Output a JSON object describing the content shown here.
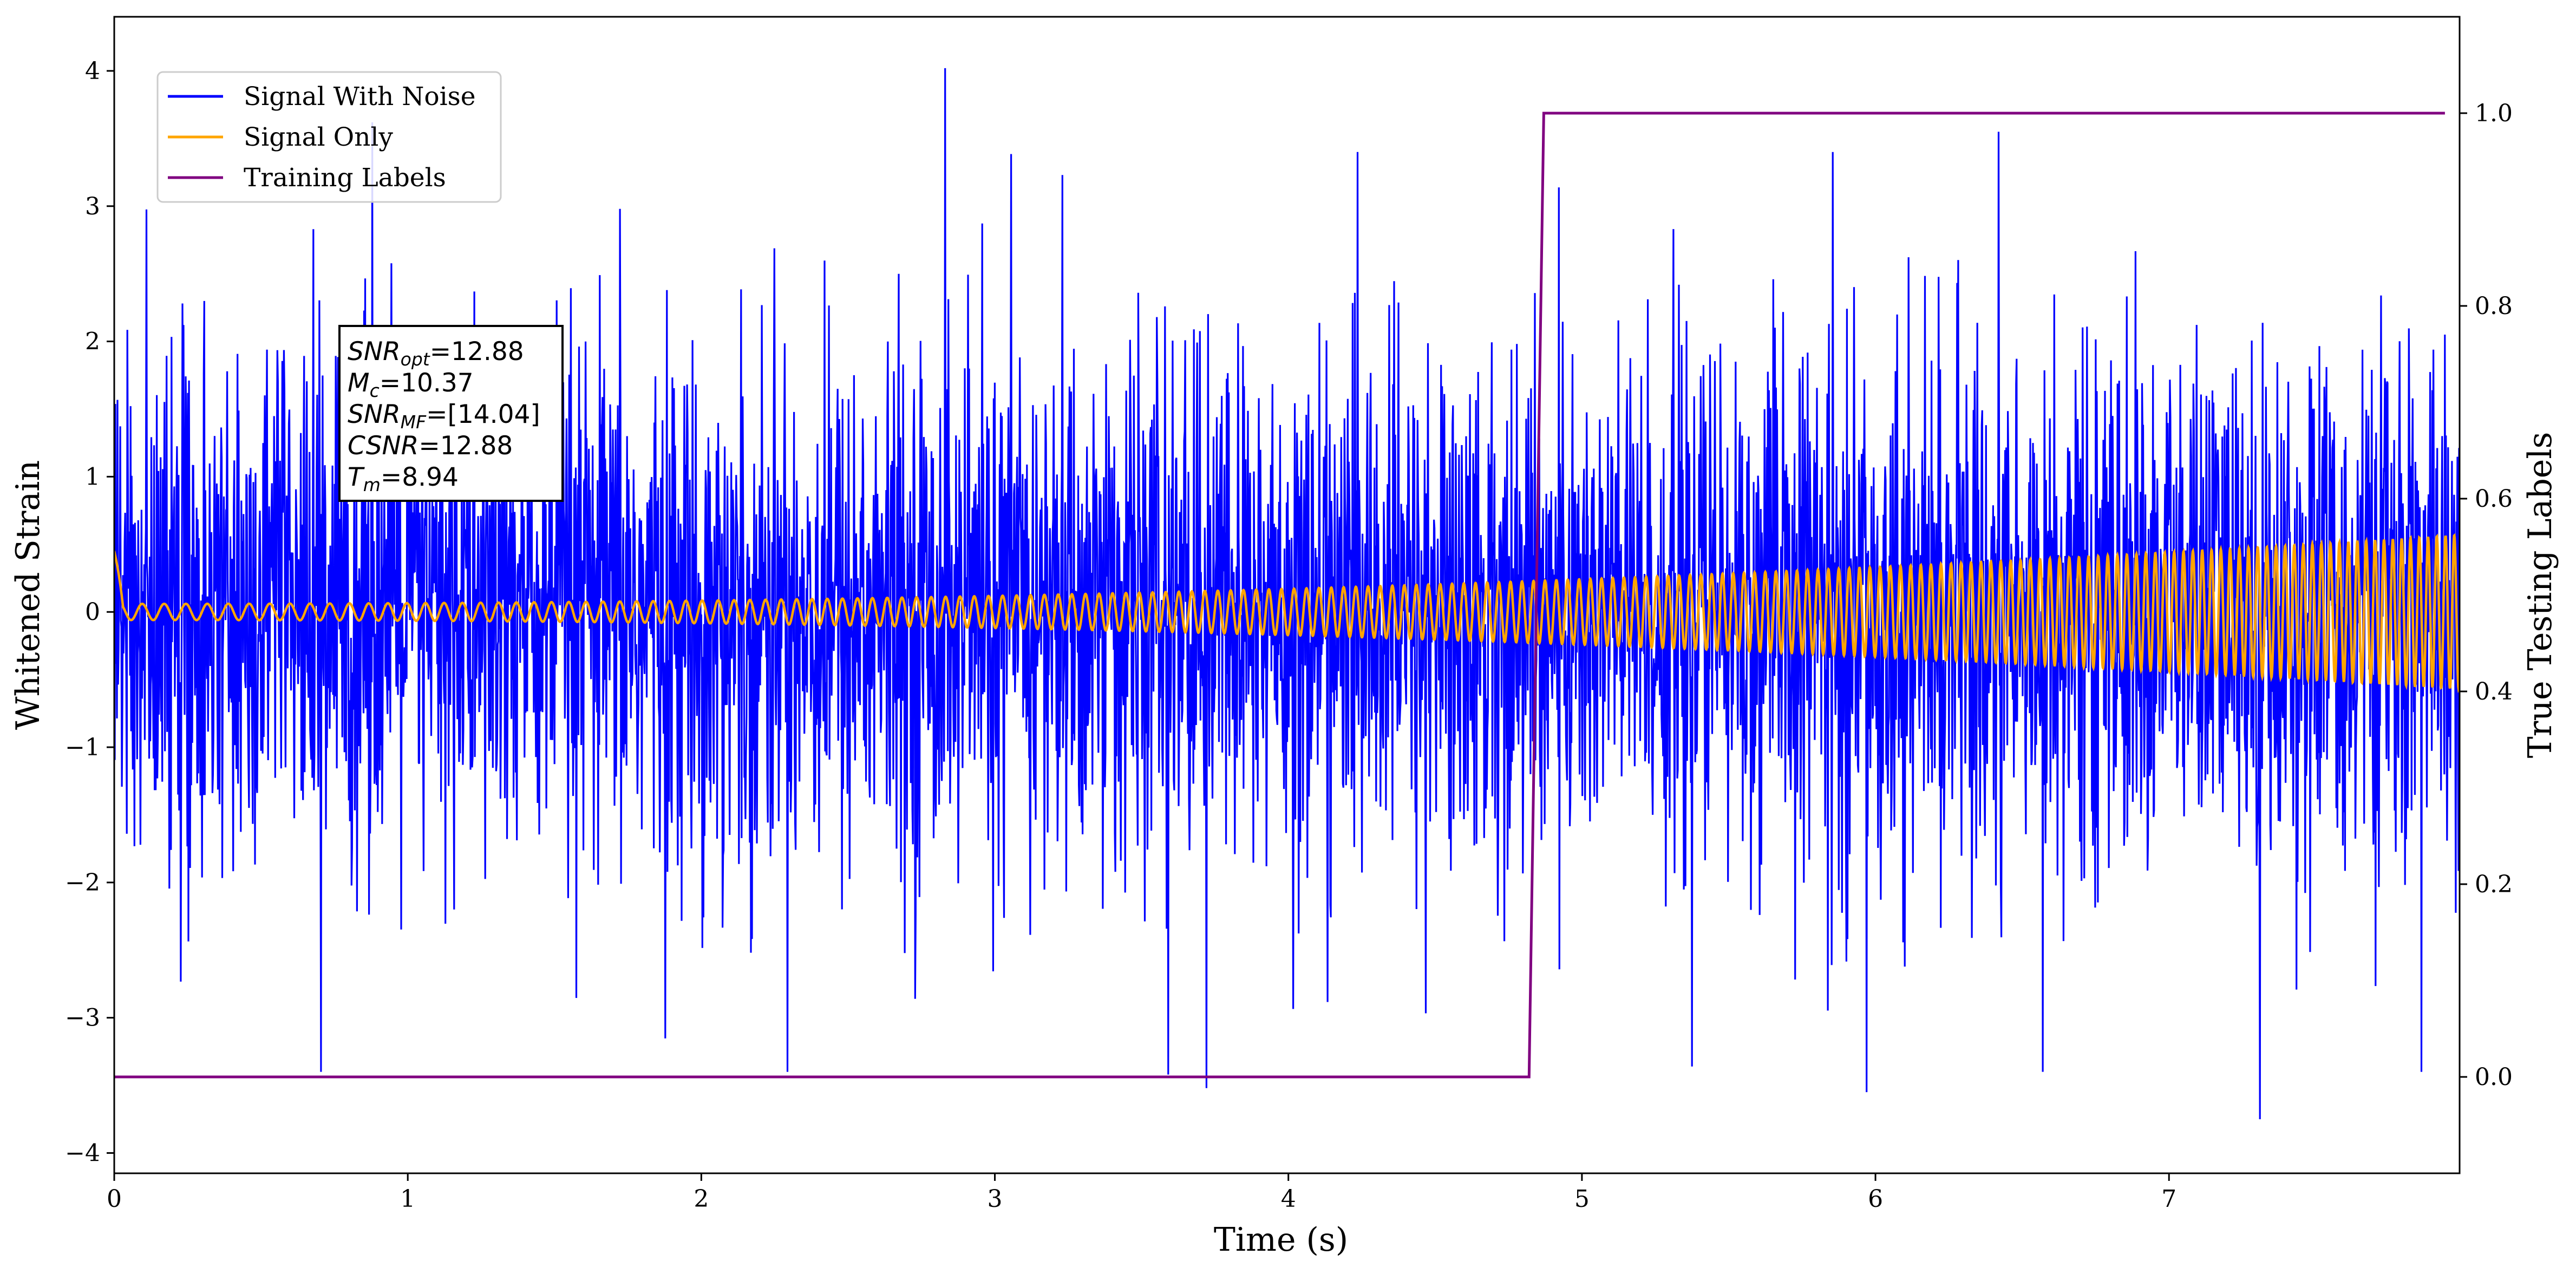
{
  "chart_data": {
    "type": "line",
    "xlabel": "Time (s)",
    "ylabel": "Whitened Strain",
    "ylabel_right": "True Testing Labels",
    "xlim": [
      0,
      7.99
    ],
    "ylim": [
      -4.15,
      4.4
    ],
    "ylim_right": [
      -0.1,
      1.1
    ],
    "x_ticks": [
      "0",
      "1",
      "2",
      "3",
      "4",
      "5",
      "6",
      "7"
    ],
    "y_ticks": [
      "4",
      "3",
      "2",
      "1",
      "0",
      "−1",
      "−2",
      "−3",
      "−4"
    ],
    "y_right_ticks": [
      "0.0",
      "0.2",
      "0.4",
      "0.6",
      "0.8",
      "1.0"
    ],
    "legend_position": "upper-left",
    "series": [
      {
        "name": "Signal With Noise",
        "color": "#0000ff",
        "axis": "left",
        "description_of_values": "random whitened strain noise, roughly within -2.5..2.5 with spikes",
        "peaks": [
          {
            "x": 2.83,
            "y": 4.02
          },
          {
            "x": 0.88,
            "y": 3.62
          },
          {
            "x": 6.42,
            "y": 3.55
          },
          {
            "x": 3.72,
            "y": -3.52
          },
          {
            "x": 5.97,
            "y": -3.55
          },
          {
            "x": 7.31,
            "y": -3.75
          },
          {
            "x": 3.59,
            "y": -3.42
          }
        ]
      },
      {
        "name": "Signal Only",
        "color": "#ffa500",
        "axis": "left",
        "description_of_values": "chirp with amplitude growing from ~0.06 at t=0 to ~0.57 at t=7.99"
      },
      {
        "name": "Training Labels",
        "color": "#800080",
        "axis": "right",
        "x": [
          0,
          4.82,
          4.87,
          7.94
        ],
        "y": [
          0,
          0,
          1,
          1
        ]
      }
    ],
    "annotation": {
      "lines": [
        {
          "var": "SNR",
          "sub": "opt",
          "rest": "=12.88"
        },
        {
          "var": "M",
          "sub": "c",
          "rest": "=10.37"
        },
        {
          "var": "SNR",
          "sub": "MF",
          "rest": "=[14.04]"
        },
        {
          "var": "CSNR",
          "sub": "",
          "rest": "=12.88"
        },
        {
          "var": "T",
          "sub": "m",
          "rest": "=8.94"
        }
      ]
    }
  }
}
